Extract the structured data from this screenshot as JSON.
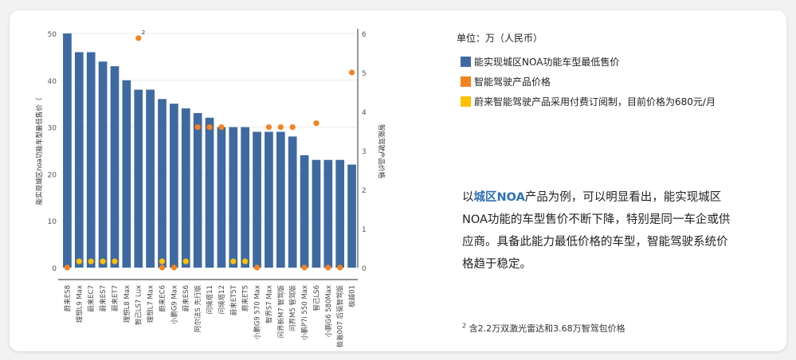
{
  "legend": {
    "unit": "单位：万（人民币）",
    "items": [
      {
        "label": "能实现城区NOA功能车型最低售价",
        "color": "#3f6aa1"
      },
      {
        "label": "智能驾驶产品价格",
        "color": "#f58220"
      },
      {
        "label": "蔚来智能驾驶产品采用付费订阅制，目前价格为680元/月",
        "color": "#ffc000"
      }
    ]
  },
  "body_text": {
    "pre": "以",
    "highlight": "城区NOA",
    "post": "产品为例，可以明显看出，能实现城区NOA功能的车型售价不断下降，特别是同一车企或供应商。具备此能力最低价格的车型，智能驾驶系统价格趋于稳定。"
  },
  "footnote": {
    "marker": "2",
    "text": " 含2.2万双激光雷达和3.68万智驾包价格"
  },
  "chart_data": {
    "type": "bar",
    "categories": [
      "蔚来ES8",
      "理想L9 Max",
      "蔚来EC7",
      "蔚来ES7",
      "蔚来ET7",
      "理想L8 Max",
      "智己LS7 Lux",
      "理想L7 Max",
      "蔚来EC6",
      "小鹏G9 Max",
      "蔚来ES6",
      "阿尔法S 先行版",
      "问境塔11",
      "问境塔12",
      "蔚来ET5T",
      "蔚来ET5",
      "小鹏G9 570 Max",
      "智界S7 Max",
      "问界新M7 智驾版",
      "问界M5 智驾版",
      "小鹏P7i 550 Max",
      "智己LS6",
      "小鹏G6 580Max",
      "极氪007 后驱智驾版",
      "极越01"
    ],
    "series": [
      {
        "name": "能实现城区NOA功能车型最低售价",
        "axis": "left",
        "color": "#3f6aa1",
        "values": [
          50,
          46,
          46,
          44,
          43,
          40,
          38,
          38,
          36,
          35,
          34,
          33,
          32,
          30,
          30,
          30,
          29,
          29,
          29,
          28,
          24,
          23,
          23,
          23,
          22
        ]
      },
      {
        "name": "智能驾驶产品价格",
        "axis": "right",
        "color": "#f58220",
        "points": [
          [
            0,
            0
          ],
          [
            6,
            5.88
          ],
          [
            8,
            0
          ],
          [
            9,
            0
          ],
          [
            11,
            3.6
          ],
          [
            12,
            3.6
          ],
          [
            13,
            3.6
          ],
          [
            16,
            0
          ],
          [
            17,
            3.6
          ],
          [
            18,
            3.6
          ],
          [
            19,
            3.6
          ],
          [
            20,
            0
          ],
          [
            21,
            3.7
          ],
          [
            22,
            0
          ],
          [
            23,
            0
          ],
          [
            24,
            5
          ]
        ]
      },
      {
        "name": "蔚来智能驾驶产品采用付费订阅制，目前价格为680元/月",
        "axis": "right",
        "color": "#ffc000",
        "points": [
          [
            1,
            0.16
          ],
          [
            2,
            0.16
          ],
          [
            3,
            0.16
          ],
          [
            4,
            0.16
          ],
          [
            8,
            0.16
          ],
          [
            10,
            0.16
          ],
          [
            14,
            0.16
          ],
          [
            15,
            0.16
          ]
        ]
      }
    ],
    "annotation": {
      "index": 6,
      "text": "2"
    },
    "ylabel": "能实现城区noa功能车型最低售价（",
    "y2label": "智能驾驶产品价格",
    "ylim": [
      0,
      50
    ],
    "y2lim": [
      0,
      6
    ],
    "yticks": [
      0,
      10,
      20,
      30,
      40,
      50
    ],
    "y2ticks": [
      0,
      1,
      2,
      3,
      4,
      5,
      6
    ],
    "grid": true
  }
}
